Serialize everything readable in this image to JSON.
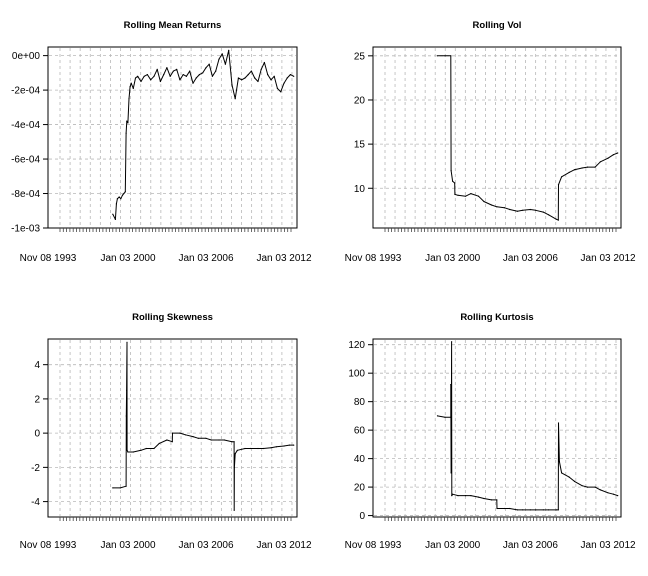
{
  "chart_data": [
    {
      "type": "line",
      "title": "Rolling Mean Returns",
      "xlabel": "",
      "ylabel": "",
      "x_tick_labels": [
        "Nov 08 1993",
        "Jan 03 2000",
        "Jan 03 2006",
        "Jan 03 2012"
      ],
      "y_tick_labels": [
        "0e+00",
        "-2e-04",
        "-4e-04",
        "-6e-04",
        "-8e-04",
        "-1e-03"
      ],
      "y_ticks": [
        0,
        -0.0002,
        -0.0004,
        -0.0006,
        -0.0008,
        -0.001
      ],
      "ylim": [
        -0.001,
        5e-05
      ],
      "xlim": [
        "1993-11-08",
        "2013-01-01"
      ],
      "grid": true,
      "series": [
        {
          "x": [
            "1998-11-01",
            "1999-01-15",
            "1999-02-10",
            "1999-03-10",
            "1999-05-01",
            "1999-06-15",
            "1999-08-01",
            "1999-09-10",
            "1999-10-20",
            "1999-11-10",
            "1999-12-01",
            "2000-01-01",
            "2000-02-01",
            "2000-03-01",
            "2000-04-01",
            "2000-06-01",
            "2000-08-01",
            "2000-10-01",
            "2001-01-01",
            "2001-04-01",
            "2001-07-01",
            "2001-10-01",
            "2002-01-01",
            "2002-04-01",
            "2002-07-01",
            "2002-10-01",
            "2003-01-01",
            "2003-04-01",
            "2003-07-01",
            "2003-10-01",
            "2004-01-01",
            "2004-04-01",
            "2004-07-01",
            "2004-10-01",
            "2005-01-01",
            "2005-04-01",
            "2005-07-01",
            "2005-10-01",
            "2006-01-01",
            "2006-04-01",
            "2006-07-01",
            "2006-10-01",
            "2007-01-01",
            "2007-04-01",
            "2007-07-01",
            "2007-10-01",
            "2008-01-01",
            "2008-04-01",
            "2008-07-01",
            "2008-10-01",
            "2009-01-01",
            "2009-04-01",
            "2009-07-01",
            "2009-10-01",
            "2010-01-01",
            "2010-04-01",
            "2010-07-01",
            "2010-10-01",
            "2011-01-01",
            "2011-04-01",
            "2011-07-01",
            "2011-10-01",
            "2012-01-01",
            "2012-04-01",
            "2012-07-01",
            "2012-10-01"
          ],
          "y": [
            -0.00092,
            -0.00095,
            -0.00086,
            -0.00083,
            -0.00082,
            -0.00083,
            -0.00081,
            -0.0008,
            -0.00079,
            -0.00045,
            -0.00038,
            -0.00039,
            -0.00025,
            -0.00018,
            -0.00016,
            -0.00019,
            -0.00013,
            -0.00012,
            -0.00015,
            -0.00012,
            -0.00011,
            -0.00014,
            -0.00012,
            -8e-05,
            -0.00015,
            -0.00011,
            -7e-05,
            -0.00012,
            -9e-05,
            -8e-05,
            -0.00014,
            -0.00011,
            -0.00012,
            -9e-05,
            -0.00016,
            -0.00013,
            -0.00011,
            -0.0001,
            -7e-05,
            -5e-05,
            -0.00012,
            -9e-05,
            -2e-05,
            1e-05,
            -5e-05,
            3e-05,
            -0.00017,
            -0.00025,
            -0.00013,
            -0.00014,
            -0.00013,
            -0.00011,
            -9e-05,
            -0.00013,
            -0.00015,
            -8e-05,
            -4e-05,
            -0.00011,
            -0.00014,
            -0.00012,
            -0.00019,
            -0.00021,
            -0.00016,
            -0.00013,
            -0.00011,
            -0.00012
          ]
        }
      ]
    },
    {
      "type": "line",
      "title": "Rolling Vol",
      "xlabel": "",
      "ylabel": "",
      "x_tick_labels": [
        "Nov 08 1993",
        "Jan 03 2000",
        "Jan 03 2006",
        "Jan 03 2012"
      ],
      "y_tick_labels": [
        "25",
        "20",
        "15",
        "10"
      ],
      "y_ticks": [
        25,
        20,
        15,
        10
      ],
      "ylim": [
        5.5,
        26
      ],
      "xlim": [
        "1993-11-08",
        "2013-01-01"
      ],
      "grid": true,
      "series": [
        {
          "x": [
            "1998-11-01",
            "1999-06-01",
            "1999-11-10",
            "1999-11-20",
            "2000-01-01",
            "2000-03-01",
            "2000-03-05",
            "2000-06-01",
            "2001-01-01",
            "2001-06-01",
            "2002-01-01",
            "2002-06-01",
            "2003-01-01",
            "2003-06-01",
            "2004-01-01",
            "2004-06-01",
            "2005-01-01",
            "2005-06-01",
            "2006-01-01",
            "2006-06-01",
            "2007-01-01",
            "2007-06-01",
            "2008-01-01",
            "2008-03-01",
            "2008-03-05",
            "2008-06-01",
            "2009-01-01",
            "2009-06-01",
            "2010-01-01",
            "2010-06-01",
            "2011-01-01",
            "2011-06-01",
            "2012-01-01",
            "2012-06-01",
            "2012-10-01"
          ],
          "y": [
            25.0,
            25.0,
            25.0,
            12.0,
            10.8,
            10.6,
            9.3,
            9.2,
            9.1,
            9.4,
            9.1,
            8.5,
            8.1,
            7.9,
            7.8,
            7.6,
            7.4,
            7.5,
            7.6,
            7.5,
            7.3,
            7.0,
            6.5,
            6.4,
            10.4,
            11.3,
            11.8,
            12.1,
            12.3,
            12.4,
            12.4,
            13.0,
            13.4,
            13.8,
            14.0
          ]
        }
      ]
    },
    {
      "type": "line",
      "title": "Rolling Skewness",
      "xlabel": "",
      "ylabel": "",
      "x_tick_labels": [
        "Nov 08 1993",
        "Jan 03 2000",
        "Jan 03 2006",
        "Jan 03 2012"
      ],
      "y_tick_labels": [
        "4",
        "2",
        "0",
        "-2",
        "-4"
      ],
      "y_ticks": [
        4,
        2,
        0,
        -2,
        -4
      ],
      "ylim": [
        -4.9,
        5.5
      ],
      "xlim": [
        "1993-11-08",
        "2013-01-01"
      ],
      "grid": true,
      "series": [
        {
          "x": [
            "1998-11-01",
            "1999-06-01",
            "1999-11-10",
            "1999-11-15",
            "1999-11-25",
            "1999-12-05",
            "1999-12-10",
            "2000-01-01",
            "2000-06-01",
            "2001-01-01",
            "2001-06-01",
            "2002-01-01",
            "2002-06-01",
            "2003-01-01",
            "2003-06-01",
            "2003-06-05",
            "2004-01-01",
            "2004-06-01",
            "2005-01-01",
            "2005-06-01",
            "2006-01-01",
            "2006-06-01",
            "2007-01-01",
            "2007-06-01",
            "2008-01-01",
            "2008-03-01",
            "2008-03-05",
            "2008-03-10",
            "2008-04-01",
            "2008-06-01",
            "2009-01-01",
            "2009-06-01",
            "2010-01-01",
            "2010-06-01",
            "2011-01-01",
            "2011-06-01",
            "2012-01-01",
            "2012-06-01",
            "2012-10-01"
          ],
          "y": [
            -3.2,
            -3.2,
            -3.1,
            1.0,
            2.5,
            5.3,
            -1.0,
            -1.1,
            -1.1,
            -1.0,
            -0.9,
            -0.9,
            -0.6,
            -0.4,
            -0.5,
            0.0,
            0.0,
            -0.1,
            -0.2,
            -0.3,
            -0.3,
            -0.4,
            -0.4,
            -0.4,
            -0.5,
            -0.5,
            -4.5,
            -2.0,
            -1.2,
            -1.0,
            -0.9,
            -0.9,
            -0.9,
            -0.9,
            -0.85,
            -0.8,
            -0.75,
            -0.7,
            -0.7
          ]
        }
      ]
    },
    {
      "type": "line",
      "title": "Rolling Kurtosis",
      "xlabel": "",
      "ylabel": "",
      "x_tick_labels": [
        "Nov 08 1993",
        "Jan 03 2000",
        "Jan 03 2006",
        "Jan 03 2012"
      ],
      "y_tick_labels": [
        "120",
        "100",
        "80",
        "60",
        "40",
        "20",
        "0"
      ],
      "y_ticks": [
        120,
        100,
        80,
        60,
        40,
        20,
        0
      ],
      "ylim": [
        -1,
        124
      ],
      "xlim": [
        "1993-11-08",
        "2013-01-01"
      ],
      "grid": true,
      "series": [
        {
          "x": [
            "1998-11-01",
            "1999-06-01",
            "1999-11-10",
            "1999-11-12",
            "1999-11-20",
            "1999-11-25",
            "1999-12-05",
            "1999-12-10",
            "2000-01-01",
            "2000-06-01",
            "2001-01-01",
            "2001-06-01",
            "2002-01-01",
            "2002-06-01",
            "2003-01-01",
            "2003-06-01",
            "2003-06-05",
            "2004-01-01",
            "2004-06-01",
            "2005-01-01",
            "2005-06-01",
            "2006-01-01",
            "2006-06-01",
            "2007-01-01",
            "2007-06-01",
            "2008-01-01",
            "2008-03-01",
            "2008-03-05",
            "2008-04-01",
            "2008-06-01",
            "2009-01-01",
            "2009-06-01",
            "2010-01-01",
            "2010-06-01",
            "2011-01-01",
            "2011-06-01",
            "2012-01-01",
            "2012-06-01",
            "2012-10-01"
          ],
          "y": [
            70,
            69,
            69,
            92,
            30,
            50,
            122,
            14,
            15,
            14,
            14,
            14,
            13,
            12,
            11,
            11,
            5,
            5,
            5,
            4,
            4,
            4,
            4,
            4,
            4,
            4,
            4,
            65,
            38,
            30,
            27,
            24,
            21,
            20,
            20,
            18,
            16,
            15,
            14
          ]
        }
      ]
    }
  ]
}
